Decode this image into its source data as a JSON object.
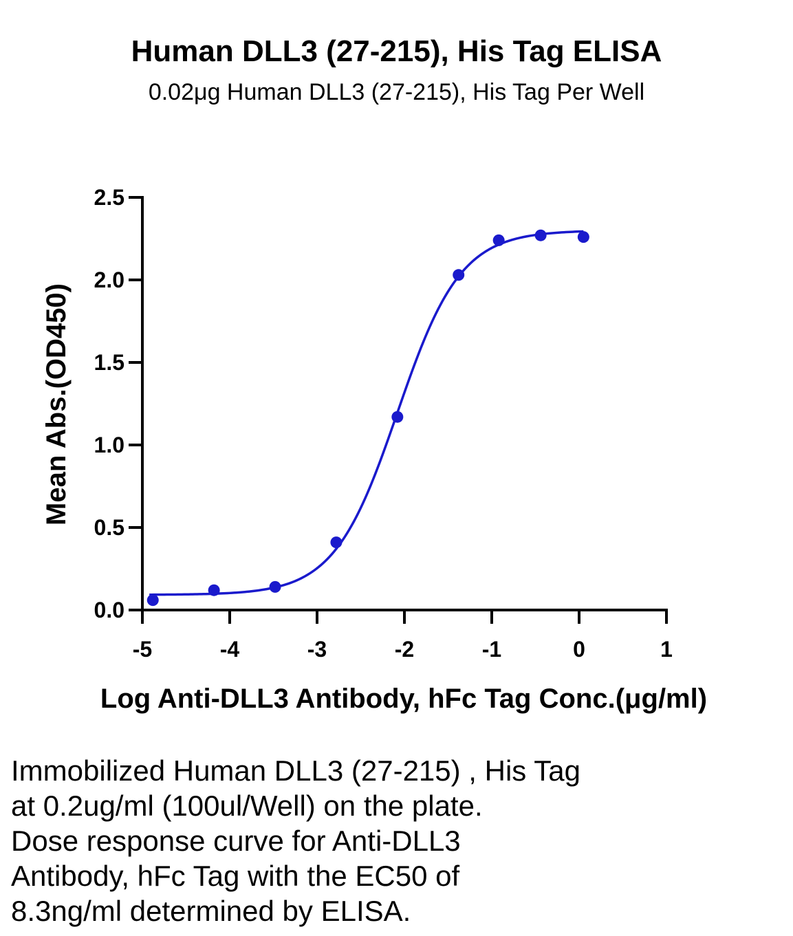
{
  "chart_data": {
    "type": "scatter",
    "title": "Human DLL3 (27-215), His Tag ELISA",
    "subtitle": "0.02μg Human DLL3 (27-215), His Tag Per Well",
    "xlabel": "Log Anti-DLL3 Antibody, hFc Tag Conc.(μg/ml)",
    "ylabel": "Mean Abs.(OD450)",
    "xlim": [
      -5,
      1
    ],
    "ylim": [
      0,
      2.5
    ],
    "x_ticks": [
      "-5",
      "-4",
      "-3",
      "-2",
      "-1",
      "0",
      "1"
    ],
    "y_ticks": [
      "0.0",
      "0.5",
      "1.0",
      "1.5",
      "2.0",
      "2.5"
    ],
    "series": [
      {
        "color": "#1a1acc",
        "points": [
          {
            "x": -4.88,
            "y": 0.06
          },
          {
            "x": -4.18,
            "y": 0.12
          },
          {
            "x": -3.48,
            "y": 0.14
          },
          {
            "x": -2.78,
            "y": 0.41
          },
          {
            "x": -2.08,
            "y": 1.17
          },
          {
            "x": -1.38,
            "y": 2.03
          },
          {
            "x": -0.92,
            "y": 2.24
          },
          {
            "x": -0.44,
            "y": 2.27
          },
          {
            "x": 0.05,
            "y": 2.26
          }
        ],
        "fit": {
          "model": "4PL",
          "bottom": 0.092,
          "top": 2.3,
          "log_ec50": -2.08,
          "hill_slope": 1.2,
          "x_range": [
            -4.92,
            0.05
          ]
        }
      }
    ],
    "grid": false,
    "legend": "none"
  },
  "caption": {
    "lines": [
      "Immobilized Human DLL3 (27-215) , His Tag",
      "at 0.2ug/ml (100ul/Well) on the plate.",
      "Dose response curve for Anti-DLL3",
      "Antibody, hFc Tag with the EC50 of",
      "8.3ng/ml determined by ELISA."
    ]
  }
}
